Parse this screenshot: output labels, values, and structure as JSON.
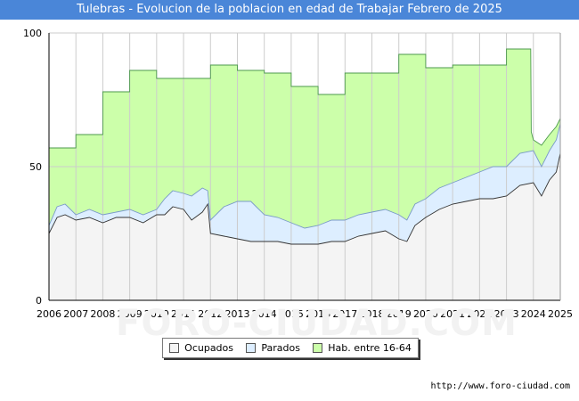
{
  "source_label": "http://www.foro-ciudad.com",
  "watermark": "FORO-CIUDAD.COM",
  "chart_data": {
    "type": "area",
    "title": "Tulebras - Evolucion de la poblacion en edad de Trabajar Febrero de 2025",
    "xlabel": "",
    "ylabel": "",
    "xlim": [
      2006,
      2025
    ],
    "ylim": [
      0,
      100
    ],
    "y_ticks": [
      0,
      50,
      100
    ],
    "x_ticks": [
      2006,
      2007,
      2008,
      2009,
      2010,
      2011,
      2012,
      2013,
      2014,
      2015,
      2016,
      2017,
      2018,
      2019,
      2020,
      2021,
      2022,
      2023,
      2024,
      2025
    ],
    "grid": true,
    "legend_position": "bottom",
    "colors": {
      "hab": "#ccffaa",
      "hab_line": "#4c9a4c",
      "parados": "#ddeeff",
      "parados_line": "#7a9ac8",
      "ocupados": "#f4f4f4",
      "ocupados_line": "#333333",
      "grid": "#cccccc"
    },
    "series": [
      {
        "name": "Hab. entre 16-64",
        "key": "hab",
        "points": [
          [
            2006.0,
            57
          ],
          [
            2007.0,
            57
          ],
          [
            2007.0,
            62
          ],
          [
            2008.0,
            62
          ],
          [
            2008.0,
            78
          ],
          [
            2009.0,
            78
          ],
          [
            2009.0,
            86
          ],
          [
            2010.0,
            86
          ],
          [
            2010.0,
            83
          ],
          [
            2012.0,
            83
          ],
          [
            2012.0,
            88
          ],
          [
            2013.0,
            88
          ],
          [
            2013.0,
            86
          ],
          [
            2014.0,
            86
          ],
          [
            2014.0,
            85
          ],
          [
            2015.0,
            85
          ],
          [
            2015.0,
            80
          ],
          [
            2016.0,
            80
          ],
          [
            2016.0,
            77
          ],
          [
            2017.0,
            77
          ],
          [
            2017.0,
            85
          ],
          [
            2019.0,
            85
          ],
          [
            2019.0,
            92
          ],
          [
            2020.0,
            92
          ],
          [
            2020.0,
            87
          ],
          [
            2021.0,
            87
          ],
          [
            2021.0,
            88
          ],
          [
            2023.0,
            88
          ],
          [
            2023.0,
            94
          ],
          [
            2023.9,
            94
          ],
          [
            2023.92,
            63
          ],
          [
            2024.0,
            60
          ],
          [
            2024.3,
            58
          ],
          [
            2024.6,
            62
          ],
          [
            2024.85,
            65
          ],
          [
            2025.0,
            68
          ]
        ]
      },
      {
        "name": "Parados",
        "key": "parados",
        "points": [
          [
            2006.0,
            28
          ],
          [
            2006.3,
            35
          ],
          [
            2006.6,
            36
          ],
          [
            2007.0,
            32
          ],
          [
            2007.5,
            34
          ],
          [
            2008.0,
            32
          ],
          [
            2008.5,
            33
          ],
          [
            2009.0,
            34
          ],
          [
            2009.5,
            32
          ],
          [
            2010.0,
            34
          ],
          [
            2010.3,
            38
          ],
          [
            2010.6,
            41
          ],
          [
            2011.0,
            40
          ],
          [
            2011.3,
            39
          ],
          [
            2011.7,
            42
          ],
          [
            2011.9,
            41
          ],
          [
            2012.0,
            30
          ],
          [
            2012.5,
            35
          ],
          [
            2013.0,
            37
          ],
          [
            2013.5,
            37
          ],
          [
            2014.0,
            32
          ],
          [
            2014.5,
            31
          ],
          [
            2015.0,
            29
          ],
          [
            2015.5,
            27
          ],
          [
            2016.0,
            28
          ],
          [
            2016.5,
            30
          ],
          [
            2017.0,
            30
          ],
          [
            2017.5,
            32
          ],
          [
            2018.0,
            33
          ],
          [
            2018.5,
            34
          ],
          [
            2019.0,
            32
          ],
          [
            2019.3,
            30
          ],
          [
            2019.6,
            36
          ],
          [
            2020.0,
            38
          ],
          [
            2020.5,
            42
          ],
          [
            2021.0,
            44
          ],
          [
            2021.5,
            46
          ],
          [
            2022.0,
            48
          ],
          [
            2022.5,
            50
          ],
          [
            2023.0,
            50
          ],
          [
            2023.5,
            55
          ],
          [
            2024.0,
            56
          ],
          [
            2024.3,
            50
          ],
          [
            2024.6,
            56
          ],
          [
            2024.85,
            60
          ],
          [
            2025.0,
            66
          ]
        ]
      },
      {
        "name": "Ocupados",
        "key": "ocupados",
        "points": [
          [
            2006.0,
            25
          ],
          [
            2006.3,
            31
          ],
          [
            2006.6,
            32
          ],
          [
            2007.0,
            30
          ],
          [
            2007.5,
            31
          ],
          [
            2008.0,
            29
          ],
          [
            2008.5,
            31
          ],
          [
            2009.0,
            31
          ],
          [
            2009.5,
            29
          ],
          [
            2010.0,
            32
          ],
          [
            2010.3,
            32
          ],
          [
            2010.6,
            35
          ],
          [
            2011.0,
            34
          ],
          [
            2011.3,
            30
          ],
          [
            2011.7,
            33
          ],
          [
            2011.9,
            36
          ],
          [
            2012.0,
            25
          ],
          [
            2012.5,
            24
          ],
          [
            2013.0,
            23
          ],
          [
            2013.5,
            22
          ],
          [
            2014.0,
            22
          ],
          [
            2014.5,
            22
          ],
          [
            2015.0,
            21
          ],
          [
            2015.5,
            21
          ],
          [
            2016.0,
            21
          ],
          [
            2016.5,
            22
          ],
          [
            2017.0,
            22
          ],
          [
            2017.5,
            24
          ],
          [
            2018.0,
            25
          ],
          [
            2018.5,
            26
          ],
          [
            2019.0,
            23
          ],
          [
            2019.3,
            22
          ],
          [
            2019.6,
            28
          ],
          [
            2020.0,
            31
          ],
          [
            2020.5,
            34
          ],
          [
            2021.0,
            36
          ],
          [
            2021.5,
            37
          ],
          [
            2022.0,
            38
          ],
          [
            2022.5,
            38
          ],
          [
            2023.0,
            39
          ],
          [
            2023.5,
            43
          ],
          [
            2024.0,
            44
          ],
          [
            2024.3,
            39
          ],
          [
            2024.6,
            45
          ],
          [
            2024.85,
            48
          ],
          [
            2025.0,
            55
          ]
        ]
      }
    ]
  }
}
